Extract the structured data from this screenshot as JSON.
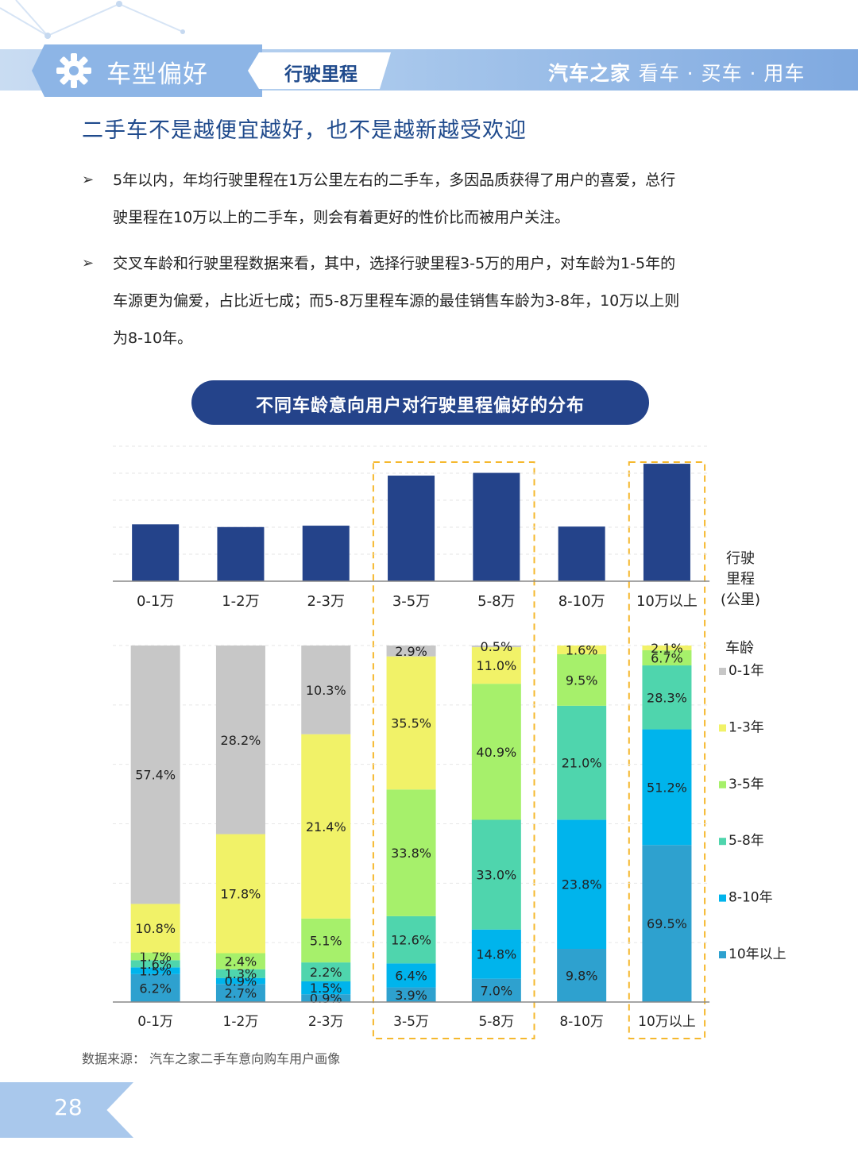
{
  "header": {
    "section_title": "车型偏好",
    "sub_tab": "行驶里程",
    "brand": "汽车之家",
    "slogan": "看车 · 买车 · 用车",
    "icon": "gear-icon"
  },
  "headline": "二手车不是越便宜越好，也不是越新越受欢迎",
  "bullets": [
    {
      "mark": "➢",
      "lines": [
        "5年以内，年均行驶里程在1万公里左右的二手车，多因品质获得了用户的喜爱，总行",
        "驶里程在10万以上的二手车，则会有着更好的性价比而被用户关注。"
      ]
    },
    {
      "mark": "➢",
      "lines": [
        "交叉车龄和行驶里程数据来看，其中，选择行驶里程3-5万的用户，对车龄为1-5年的",
        "车源更为偏爱，占比近七成；而5-8万里程车源的最佳销售车龄为3-8年，10万以上则",
        "为8-10年。"
      ]
    }
  ],
  "chart_title": "不同车龄意向用户对行驶里程偏好的分布",
  "chart_data": [
    {
      "type": "bar",
      "categories": [
        "0-1万",
        "1-2万",
        "2-3万",
        "3-5万",
        "5-8万",
        "8-10万",
        "10万以上"
      ],
      "values": [
        12.5,
        11.9,
        12.2,
        23.2,
        23.8,
        12.0,
        25.8
      ],
      "axis_label_lines": [
        "行驶",
        "里程",
        "(公里)"
      ],
      "highlighted_categories": [
        "3-5万",
        "5-8万",
        "10万以上"
      ]
    },
    {
      "type": "bar",
      "stacked": true,
      "categories": [
        "0-1万",
        "1-2万",
        "2-3万",
        "3-5万",
        "5-8万",
        "8-10万",
        "10万以上"
      ],
      "legend_title": "车龄",
      "series": [
        {
          "name": "10年以上",
          "color": "#2ea1cf",
          "values": [
            6.2,
            2.7,
            0.9,
            3.9,
            7.0,
            9.8,
            69.5
          ]
        },
        {
          "name": "8-10年",
          "color": "#00b4ec",
          "values": [
            1.5,
            0.9,
            1.5,
            6.4,
            14.8,
            23.8,
            51.2
          ]
        },
        {
          "name": "5-8年",
          "color": "#4fd5ad",
          "values": [
            1.6,
            1.3,
            2.2,
            12.6,
            33.0,
            21.0,
            28.3
          ]
        },
        {
          "name": "3-5年",
          "color": "#a6f06b",
          "values": [
            1.7,
            2.4,
            5.1,
            33.8,
            40.9,
            9.5,
            6.7
          ]
        },
        {
          "name": "1-3年",
          "color": "#f1f268",
          "values": [
            10.8,
            17.8,
            21.4,
            35.5,
            11.0,
            1.6,
            2.1
          ]
        },
        {
          "name": "0-1年",
          "color": "#c7c7c7",
          "values": [
            57.4,
            28.2,
            10.3,
            2.9,
            0.5,
            null,
            null
          ]
        }
      ],
      "highlighted_categories": [
        "3-5万",
        "5-8万",
        "10万以上"
      ]
    }
  ],
  "source": "数据来源：  汽车之家二手车意向购车用户画像",
  "page_number": "28",
  "colors": {
    "primary_blue": "#24438a",
    "headline_blue": "#1f4a8c",
    "highlight_dash": "#f5b82e"
  }
}
